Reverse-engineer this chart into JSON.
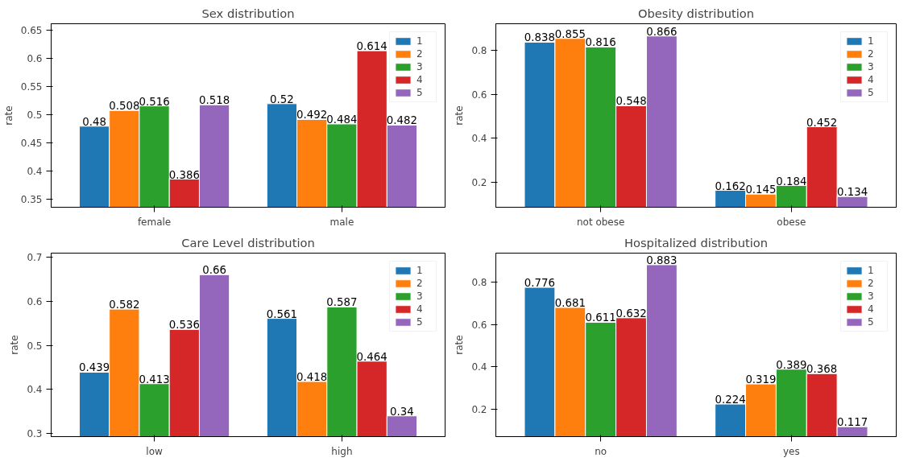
{
  "chart_data": [
    {
      "type": "bar",
      "title": "Sex distribution",
      "ylabel": "rate",
      "categories": [
        "female",
        "male"
      ],
      "ylim": [
        0.336,
        0.662
      ],
      "yticks": [
        0.35,
        0.4,
        0.45,
        0.5,
        0.55,
        0.6,
        0.65
      ],
      "data_labels": true,
      "legend": "top right",
      "grid": false,
      "series": [
        {
          "name": "1",
          "color": "#1f77b4",
          "values": [
            0.48,
            0.52
          ]
        },
        {
          "name": "2",
          "color": "#ff7f0e",
          "values": [
            0.508,
            0.492
          ]
        },
        {
          "name": "3",
          "color": "#2ca02c",
          "values": [
            0.516,
            0.484
          ]
        },
        {
          "name": "4",
          "color": "#d62728",
          "values": [
            0.386,
            0.614
          ]
        },
        {
          "name": "5",
          "color": "#9467bd",
          "values": [
            0.518,
            0.482
          ]
        }
      ]
    },
    {
      "type": "bar",
      "title": "Obesity distribution",
      "ylabel": "rate",
      "categories": [
        "not obese",
        "obese"
      ],
      "ylim": [
        0.085,
        0.922
      ],
      "yticks": [
        0.2,
        0.4,
        0.6,
        0.8
      ],
      "data_labels": true,
      "legend": "top right",
      "grid": false,
      "series": [
        {
          "name": "1",
          "color": "#1f77b4",
          "values": [
            0.838,
            0.162
          ]
        },
        {
          "name": "2",
          "color": "#ff7f0e",
          "values": [
            0.855,
            0.145
          ]
        },
        {
          "name": "3",
          "color": "#2ca02c",
          "values": [
            0.816,
            0.184
          ]
        },
        {
          "name": "4",
          "color": "#d62728",
          "values": [
            0.548,
            0.452
          ]
        },
        {
          "name": "5",
          "color": "#9467bd",
          "values": [
            0.866,
            0.134
          ]
        }
      ]
    },
    {
      "type": "bar",
      "title": "Care Level distribution",
      "ylabel": "rate",
      "categories": [
        "low",
        "high"
      ],
      "ylim": [
        0.293,
        0.709
      ],
      "yticks": [
        0.3,
        0.4,
        0.5,
        0.6,
        0.7
      ],
      "data_labels": true,
      "legend": "top right",
      "grid": false,
      "series": [
        {
          "name": "1",
          "color": "#1f77b4",
          "values": [
            0.439,
            0.561
          ]
        },
        {
          "name": "2",
          "color": "#ff7f0e",
          "values": [
            0.582,
            0.418
          ]
        },
        {
          "name": "3",
          "color": "#2ca02c",
          "values": [
            0.413,
            0.587
          ]
        },
        {
          "name": "4",
          "color": "#d62728",
          "values": [
            0.536,
            0.464
          ]
        },
        {
          "name": "5",
          "color": "#9467bd",
          "values": [
            0.66,
            0.34
          ]
        }
      ]
    },
    {
      "type": "bar",
      "title": "Hospitalized distribution",
      "ylabel": "rate",
      "categories": [
        "no",
        "yes"
      ],
      "ylim": [
        0.07,
        0.938
      ],
      "yticks": [
        0.2,
        0.4,
        0.6,
        0.8
      ],
      "data_labels": true,
      "legend": "top right",
      "grid": false,
      "series": [
        {
          "name": "1",
          "color": "#1f77b4",
          "values": [
            0.776,
            0.224
          ]
        },
        {
          "name": "2",
          "color": "#ff7f0e",
          "values": [
            0.681,
            0.319
          ]
        },
        {
          "name": "3",
          "color": "#2ca02c",
          "values": [
            0.611,
            0.389
          ]
        },
        {
          "name": "4",
          "color": "#d62728",
          "values": [
            0.632,
            0.368
          ]
        },
        {
          "name": "5",
          "color": "#9467bd",
          "values": [
            0.883,
            0.117
          ]
        }
      ]
    }
  ]
}
